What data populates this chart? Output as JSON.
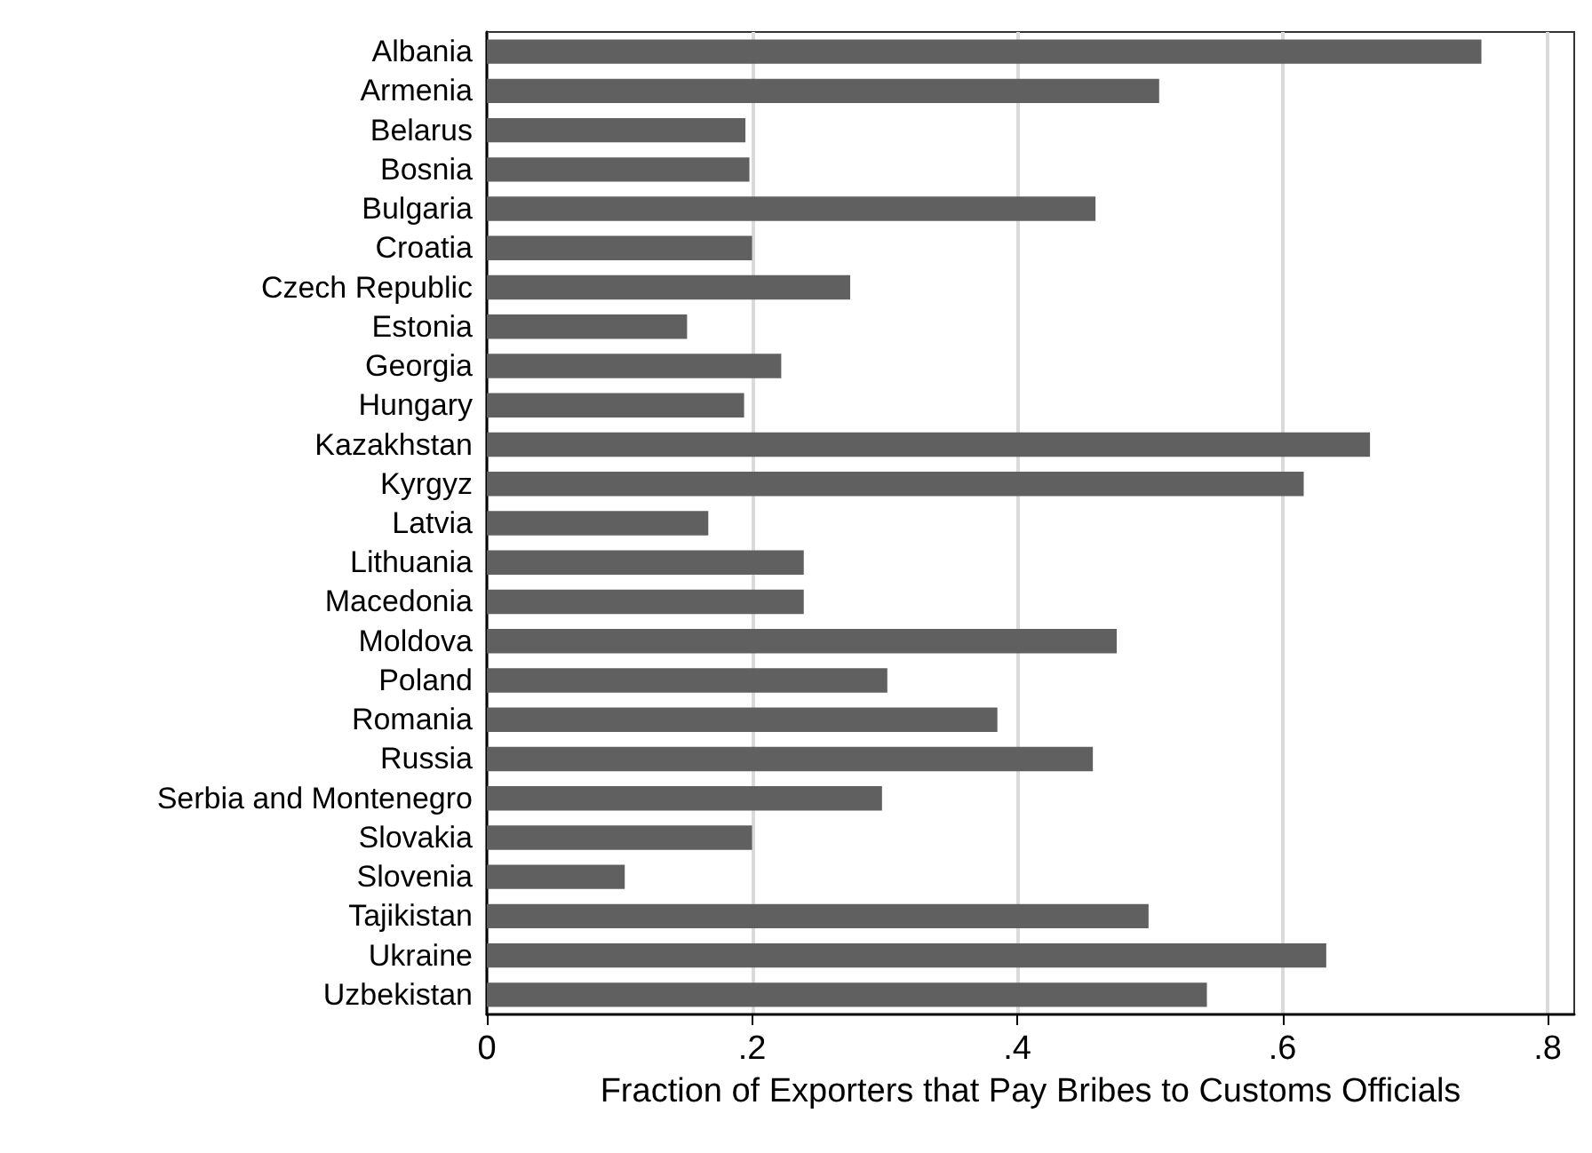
{
  "chart_data": {
    "type": "bar",
    "orientation": "horizontal",
    "xlabel": "Fraction of Exporters that Pay Bribes to Customs Officials",
    "categories": [
      "Albania",
      "Armenia",
      "Belarus",
      "Bosnia",
      "Bulgaria",
      "Croatia",
      "Czech Republic",
      "Estonia",
      "Georgia",
      "Hungary",
      "Kazakhstan",
      "Kyrgyz",
      "Latvia",
      "Lithuania",
      "Macedonia",
      "Moldova",
      "Poland",
      "Romania",
      "Russia",
      "Serbia and Montenegro",
      "Slovakia",
      "Slovenia",
      "Tajikistan",
      "Ukraine",
      "Uzbekistan"
    ],
    "values": [
      0.75,
      0.507,
      0.195,
      0.198,
      0.459,
      0.2,
      0.274,
      0.151,
      0.222,
      0.194,
      0.666,
      0.616,
      0.167,
      0.239,
      0.239,
      0.475,
      0.302,
      0.385,
      0.457,
      0.298,
      0.2,
      0.104,
      0.499,
      0.633,
      0.543
    ],
    "color": "#606060",
    "xlim": [
      0,
      0.82
    ],
    "xticks": [
      0,
      {
        "value": 0.2,
        "label": ".2"
      },
      {
        "value": 0.4,
        "label": ".4"
      },
      {
        "value": 0.6,
        "label": ".6"
      },
      {
        "value": 0.8,
        "label": ".8"
      }
    ],
    "grid": "x"
  }
}
